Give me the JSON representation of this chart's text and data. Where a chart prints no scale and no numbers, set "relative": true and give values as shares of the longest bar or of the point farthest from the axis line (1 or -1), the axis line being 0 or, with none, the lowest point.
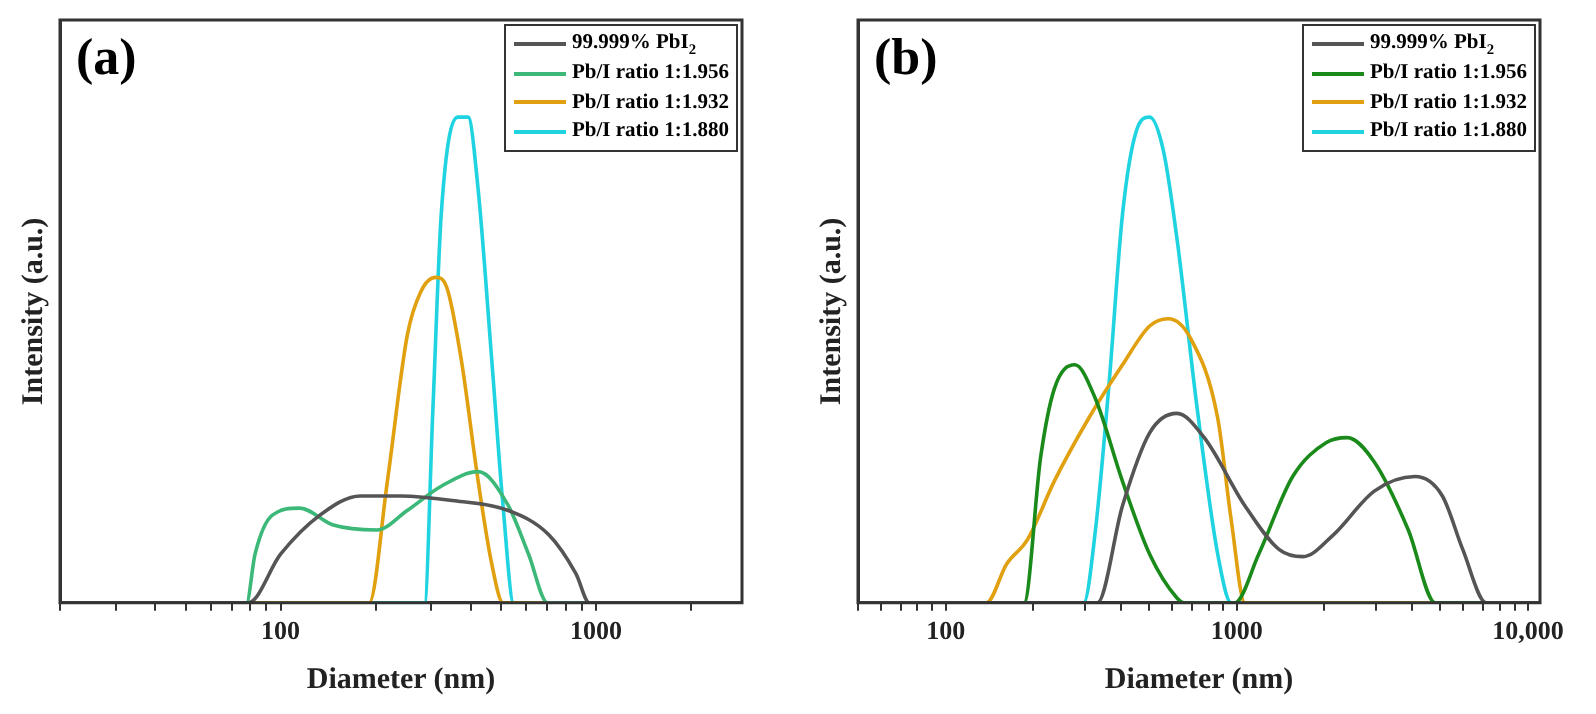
{
  "chart_data": [
    {
      "type": "line",
      "title": "(a)",
      "xlabel": "Diameter (nm)",
      "ylabel": "Intensity (a.u.)",
      "relative": true,
      "log": "x",
      "grid": false,
      "legend": "top right",
      "tick_labels": "x",
      "marker": "none",
      "line_style": "solid",
      "xlim": [
        20,
        2900
      ],
      "xticks": [
        {
          "value": 20,
          "label": null
        },
        {
          "value": 30,
          "label": null
        },
        {
          "value": 40,
          "label": null
        },
        {
          "value": 50,
          "label": null
        },
        {
          "value": 60,
          "label": null
        },
        {
          "value": 70,
          "label": null
        },
        {
          "value": 80,
          "label": null
        },
        {
          "value": 90,
          "label": null
        },
        {
          "value": 100,
          "label": "100"
        },
        {
          "value": 200,
          "label": null
        },
        {
          "value": 300,
          "label": null
        },
        {
          "value": 400,
          "label": null
        },
        {
          "value": 500,
          "label": null
        },
        {
          "value": 600,
          "label": null
        },
        {
          "value": 700,
          "label": null
        },
        {
          "value": 800,
          "label": null
        },
        {
          "value": 900,
          "label": null
        },
        {
          "value": 1000,
          "label": "1000"
        },
        {
          "value": 2000,
          "label": null
        }
      ],
      "series": [
        {
          "name": "99.999% PbI$_{2}$",
          "color": "#555555",
          "x": [
            20,
            79,
            100,
            133,
            179,
            240,
            356,
            527,
            708,
            863,
            952,
            2900
          ],
          "values": [
            0,
            0,
            0.1,
            0.18,
            0.22,
            0.22,
            0.21,
            0.19,
            0.14,
            0.06,
            0,
            0
          ]
        },
        {
          "name": "Pb/I ratio 1:1.956",
          "color": "#3cb878",
          "x": [
            20,
            78,
            83,
            94,
            115,
            147,
            202,
            252,
            323,
            423,
            527,
            611,
            702,
            2900
          ],
          "values": [
            0,
            0,
            0.1,
            0.18,
            0.195,
            0.16,
            0.15,
            0.19,
            0.24,
            0.27,
            0.2,
            0.1,
            0,
            0
          ]
        },
        {
          "name": "Pb/I ratio 1:1.932",
          "color": "#e0a010",
          "x": [
            20,
            191,
            218,
            252,
            278,
            310,
            336,
            374,
            423,
            467,
            507,
            2900
          ],
          "values": [
            0,
            0,
            0.25,
            0.55,
            0.64,
            0.67,
            0.65,
            0.5,
            0.25,
            0.08,
            0,
            0
          ]
        },
        {
          "name": "Pb/I ratio 1:1.880",
          "color": "#1fd3e0",
          "x": [
            20,
            286,
            304,
            323,
            365,
            393,
            423,
            467,
            507,
            548,
            2900
          ],
          "values": [
            0,
            0,
            0.4,
            0.8,
            1,
            1,
            0.85,
            0.5,
            0.2,
            0,
            0
          ]
        }
      ]
    },
    {
      "type": "line",
      "title": "(b)",
      "xlabel": "Diameter (nm)",
      "ylabel": "Intensity (a.u.)",
      "relative": true,
      "log": "x",
      "grid": false,
      "legend": "top right",
      "tick_labels": "x",
      "marker": "none",
      "line_style": "solid",
      "xlim": [
        50,
        11000
      ],
      "xticks": [
        {
          "value": 50,
          "label": null
        },
        {
          "value": 60,
          "label": null
        },
        {
          "value": 70,
          "label": null
        },
        {
          "value": 80,
          "label": null
        },
        {
          "value": 90,
          "label": null
        },
        {
          "value": 100,
          "label": "100"
        },
        {
          "value": 200,
          "label": null
        },
        {
          "value": 300,
          "label": null
        },
        {
          "value": 400,
          "label": null
        },
        {
          "value": 500,
          "label": null
        },
        {
          "value": 600,
          "label": null
        },
        {
          "value": 700,
          "label": null
        },
        {
          "value": 800,
          "label": null
        },
        {
          "value": 900,
          "label": null
        },
        {
          "value": 1000,
          "label": "1000"
        },
        {
          "value": 2000,
          "label": null
        },
        {
          "value": 3000,
          "label": null
        },
        {
          "value": 4000,
          "label": null
        },
        {
          "value": 5000,
          "label": null
        },
        {
          "value": 6000,
          "label": null
        },
        {
          "value": 7000,
          "label": null
        },
        {
          "value": 8000,
          "label": null
        },
        {
          "value": 9000,
          "label": null
        },
        {
          "value": 10000,
          "label": "10,000"
        }
      ],
      "series": [
        {
          "name": "99.999% PbI$_{2}$",
          "color": "#555555",
          "x": [
            50,
            332,
            405,
            502,
            623,
            773,
            1066,
            1396,
            1687,
            2147,
            2966,
            4093,
            5083,
            5970,
            7194,
            11000
          ],
          "values": [
            0,
            0,
            0.2,
            0.35,
            0.39,
            0.34,
            0.2,
            0.11,
            0.095,
            0.14,
            0.23,
            0.26,
            0.22,
            0.11,
            0,
            0
          ]
        },
        {
          "name": "Pb/I ratio 1:1.956",
          "color": "#1a8a1a",
          "x": [
            50,
            186,
            212,
            236,
            278,
            327,
            405,
            502,
            623,
            660,
            984,
            1189,
            1556,
            2032,
            2393,
            2966,
            3882,
            4808,
            11000
          ],
          "values": [
            0,
            0,
            0.3,
            0.44,
            0.49,
            0.42,
            0.25,
            0.1,
            0.01,
            0,
            0,
            0.1,
            0.26,
            0.33,
            0.34,
            0.29,
            0.15,
            0,
            0
          ]
        },
        {
          "name": "Pb/I ratio 1:1.932",
          "color": "#e0a010",
          "x": [
            50,
            138,
            162,
            191,
            236,
            310,
            405,
            502,
            581,
            693,
            860,
            957,
            1066,
            11000
          ],
          "values": [
            0,
            0,
            0.08,
            0.13,
            0.25,
            0.38,
            0.49,
            0.57,
            0.585,
            0.545,
            0.38,
            0.17,
            0,
            0
          ]
        },
        {
          "name": "Pb/I ratio 1:1.880",
          "color": "#1fd3e0",
          "x": [
            50,
            298,
            327,
            364,
            405,
            451,
            502,
            560,
            623,
            731,
            860,
            957,
            11000
          ],
          "values": [
            0,
            0,
            0.15,
            0.45,
            0.8,
            0.97,
            1,
            0.93,
            0.75,
            0.4,
            0.1,
            0,
            0
          ]
        }
      ]
    }
  ]
}
